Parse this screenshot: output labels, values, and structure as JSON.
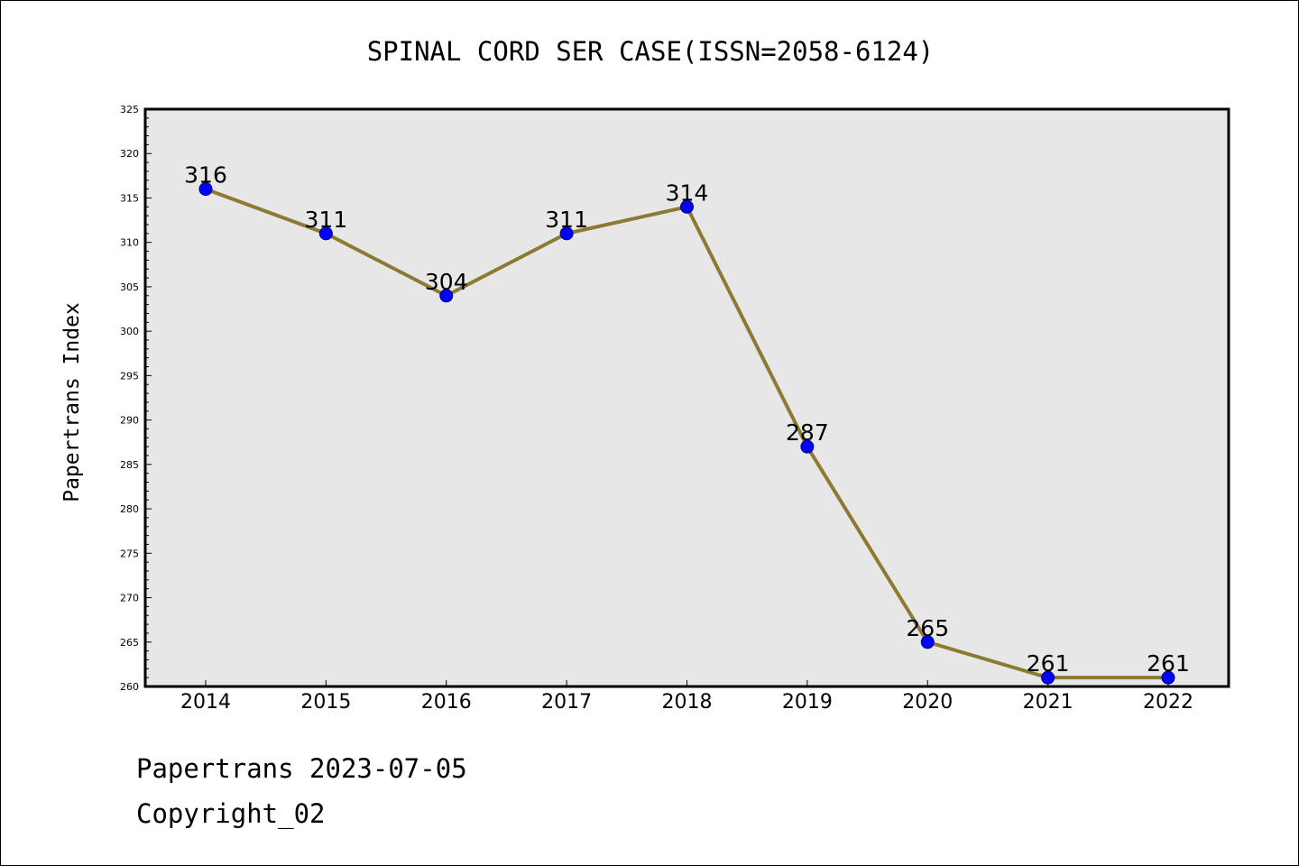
{
  "footer": {
    "line1": "Papertrans 2023-07-05",
    "line2": "Copyright_02"
  },
  "colors": {
    "plot_bg": "#e7e7e7",
    "line": "#8c7a33",
    "marker": "#0000ff",
    "marker_edge": "#000080"
  },
  "chart_data": {
    "type": "line",
    "title": "SPINAL CORD SER CASE(ISSN=2058-6124)",
    "xlabel": "",
    "ylabel": "Papertrans Index",
    "categories": [
      "2014",
      "2015",
      "2016",
      "2017",
      "2018",
      "2019",
      "2020",
      "2021",
      "2022"
    ],
    "series": [
      {
        "values": [
          316,
          311,
          304,
          311,
          314,
          287,
          265,
          261,
          261
        ]
      }
    ],
    "data_labels": [
      "316",
      "311",
      "304",
      "311",
      "314",
      "287",
      "265",
      "261",
      "261"
    ],
    "ylim": [
      260,
      325
    ],
    "yticks": [
      260,
      265,
      270,
      275,
      280,
      285,
      290,
      295,
      300,
      305,
      310,
      315,
      320,
      325
    ],
    "grid": false,
    "legend": "none"
  }
}
